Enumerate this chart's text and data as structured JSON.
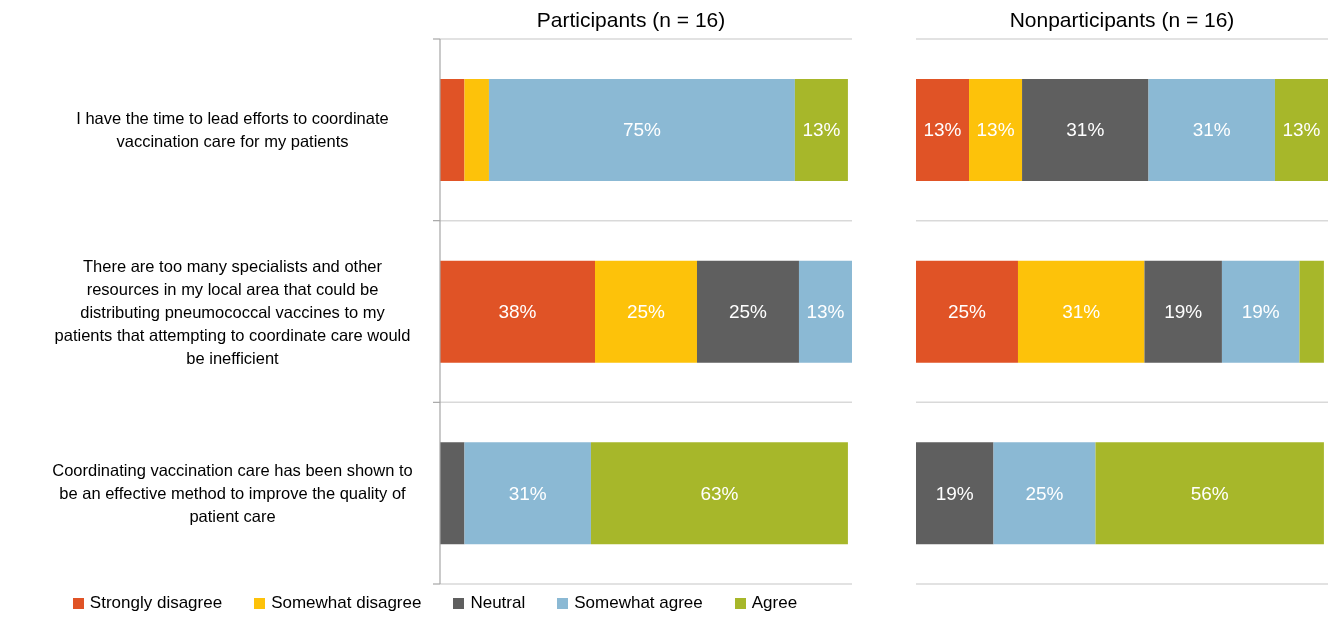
{
  "chart_data": [
    {
      "type": "bar",
      "orientation": "horizontal",
      "stacked": true,
      "title": "Participants (n = 16)",
      "categories": [
        "I have the time to lead efforts to coordinate vaccination care for my patients",
        "There are too many specialists and other resources in my local area that could be distributing pneumococcal vaccines to my patients that attempting to coordinate care would be inefficient",
        "Coordinating vaccination care has been shown to be an effective method to improve the quality of patient care"
      ],
      "series": [
        {
          "name": "Strongly disagree",
          "color": "#e05326",
          "values": [
            6,
            38,
            0
          ],
          "value_labels": [
            null,
            "38%",
            null
          ]
        },
        {
          "name": "Somewhat disagree",
          "color": "#fdc20a",
          "values": [
            6,
            25,
            0
          ],
          "value_labels": [
            null,
            "25%",
            null
          ]
        },
        {
          "name": "Neutral",
          "color": "#5f5f5f",
          "values": [
            0,
            25,
            6
          ],
          "value_labels": [
            null,
            "25%",
            null
          ]
        },
        {
          "name": "Somewhat agree",
          "color": "#8bb9d4",
          "values": [
            75,
            13,
            31
          ],
          "value_labels": [
            "75%",
            "13%",
            "31%"
          ]
        },
        {
          "name": "Agree",
          "color": "#a7b72a",
          "values": [
            13,
            0,
            63
          ],
          "value_labels": [
            "13%",
            null,
            "63%"
          ]
        }
      ],
      "grid": "y",
      "legend": "bottom",
      "tick_labels": "y"
    },
    {
      "type": "bar",
      "orientation": "horizontal",
      "stacked": true,
      "title": "Nonparticipants (n = 16)",
      "categories": [
        null,
        null,
        null
      ],
      "series": [
        {
          "color": "#e05326",
          "values": [
            13,
            25,
            0
          ],
          "value_labels": [
            "13%",
            "25%",
            null
          ]
        },
        {
          "color": "#fdc20a",
          "values": [
            13,
            31,
            0
          ],
          "value_labels": [
            "13%",
            "31%",
            null
          ]
        },
        {
          "color": "#5f5f5f",
          "values": [
            31,
            19,
            19
          ],
          "value_labels": [
            "31%",
            "19%",
            "19%"
          ]
        },
        {
          "color": "#8bb9d4",
          "values": [
            31,
            19,
            25
          ],
          "value_labels": [
            "31%",
            "19%",
            "25%"
          ]
        },
        {
          "color": "#a7b72a",
          "values": [
            13,
            6,
            56
          ],
          "value_labels": [
            "13%",
            null,
            "56%"
          ]
        }
      ],
      "grid": "y",
      "tick_labels": false
    }
  ]
}
